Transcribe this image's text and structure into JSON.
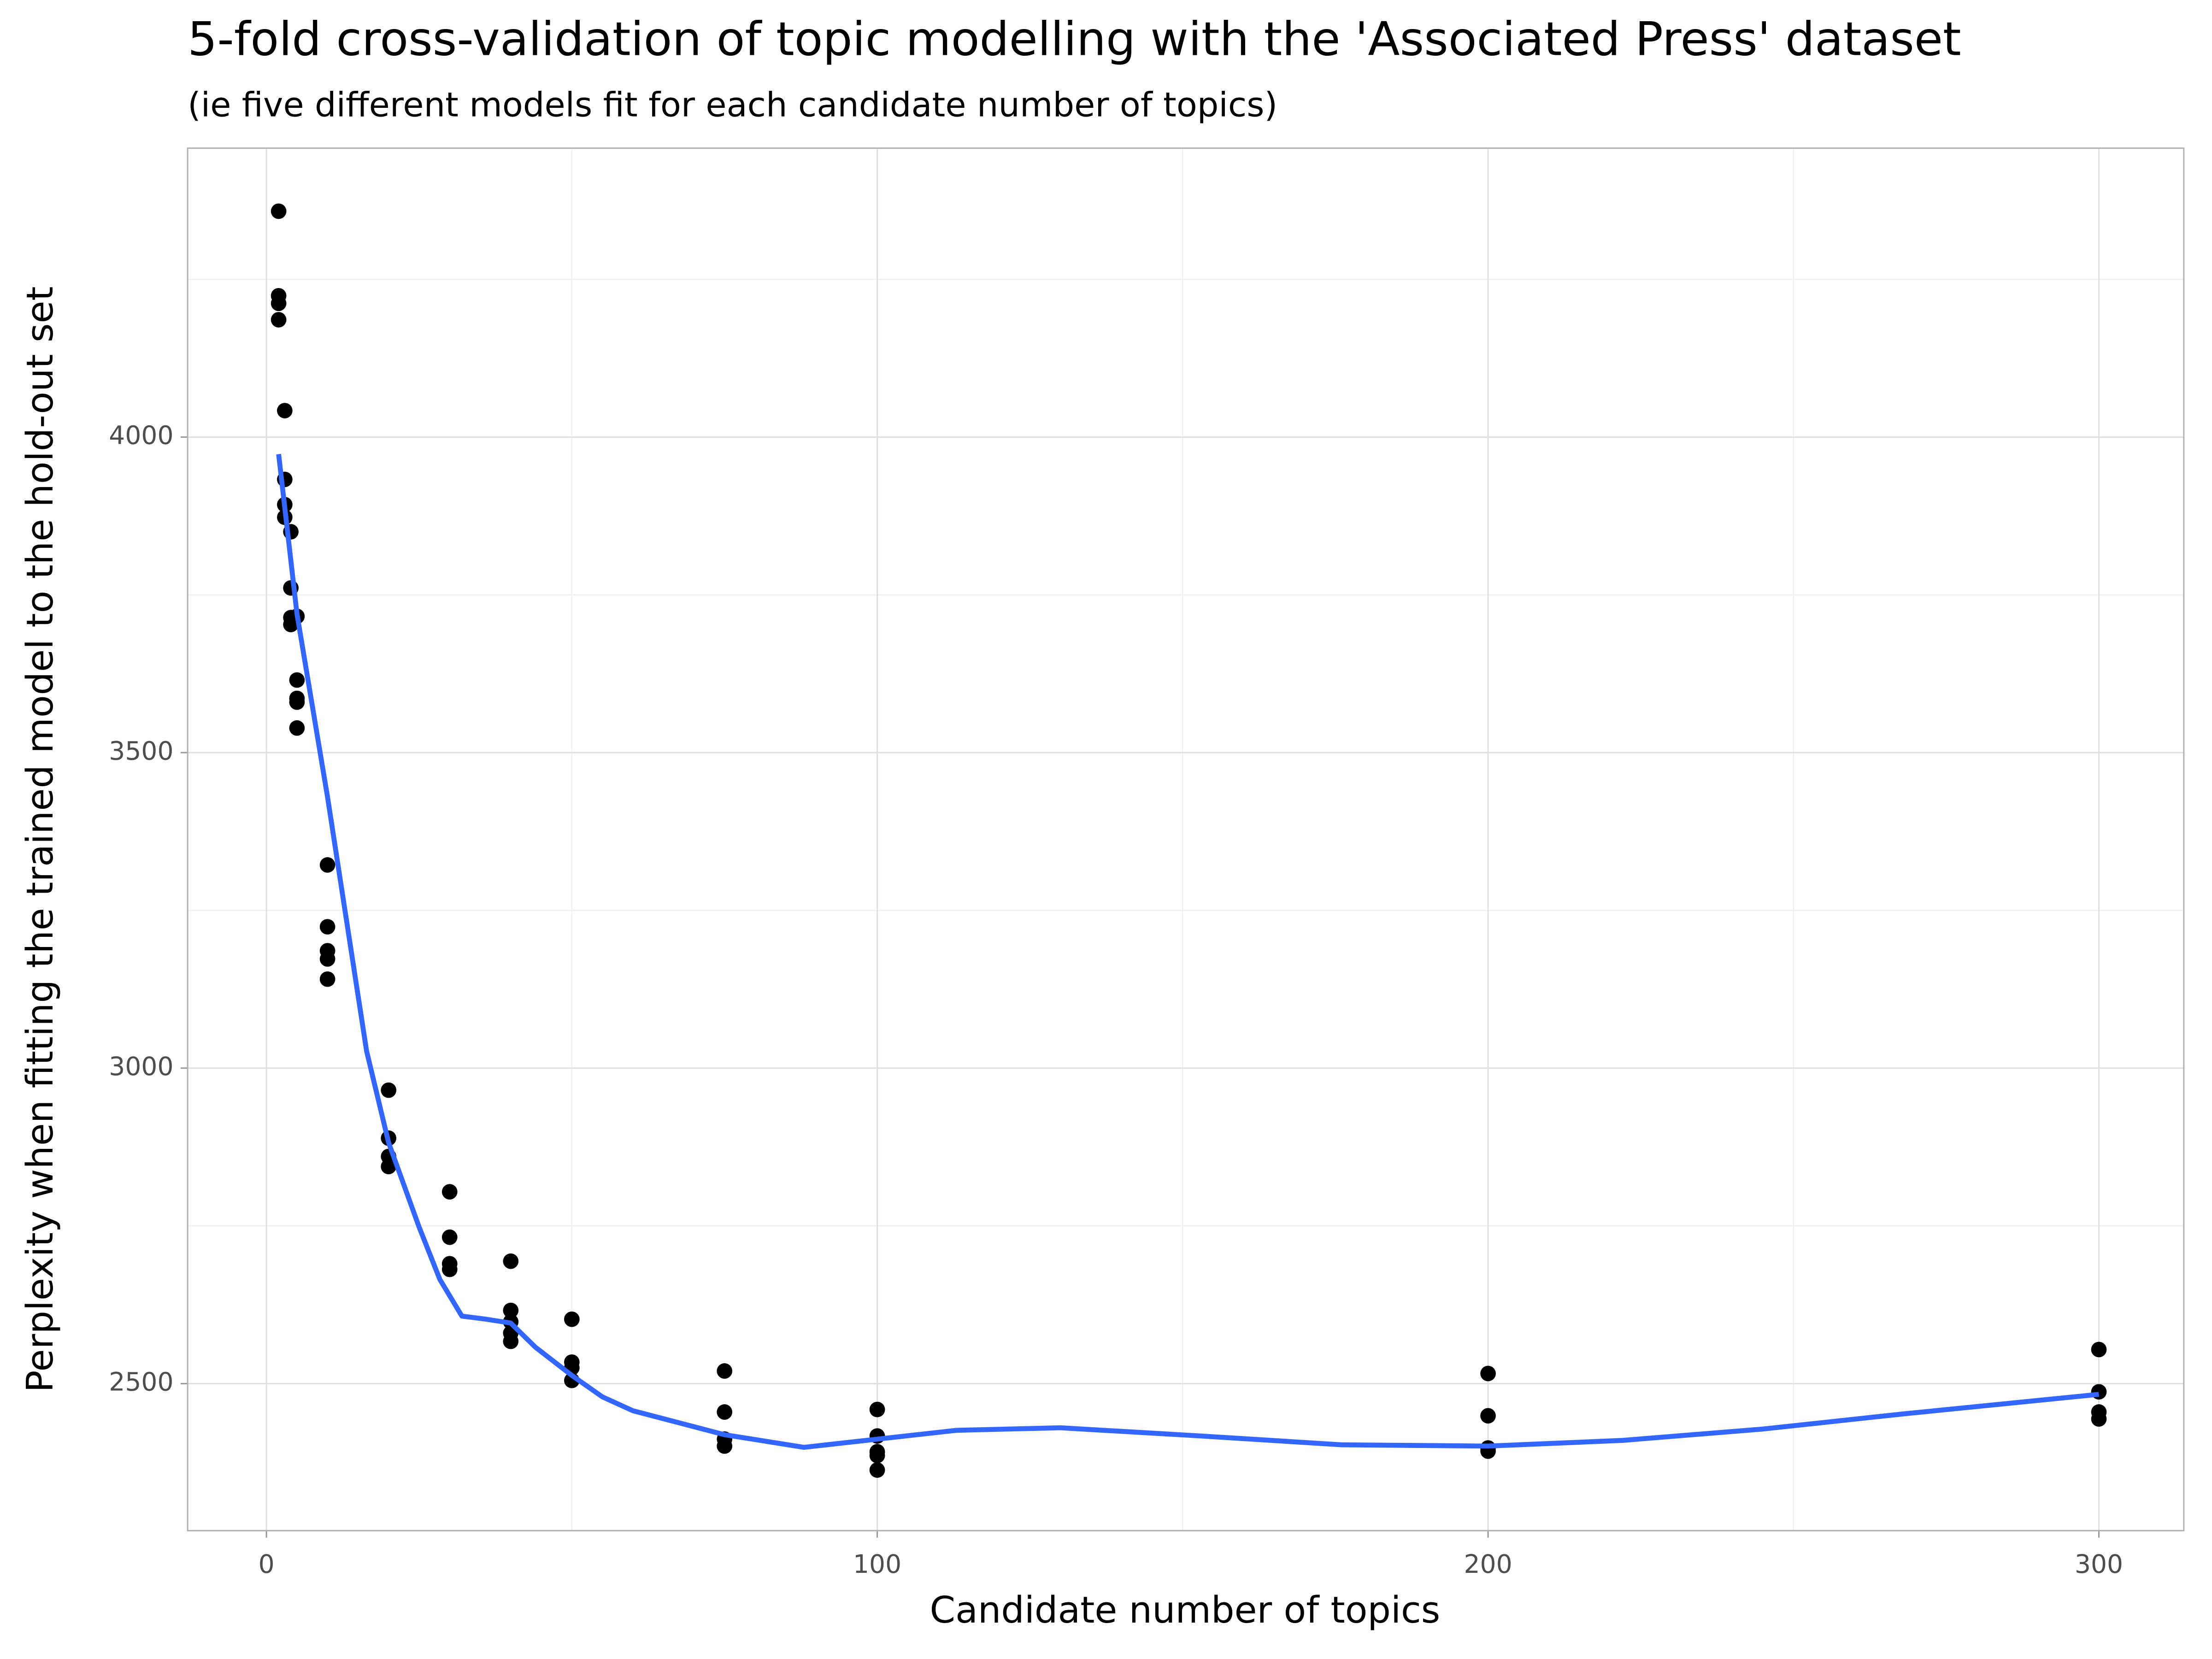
{
  "chart_data": {
    "type": "scatter",
    "title": "5-fold cross-validation of topic modelling with the 'Associated Press' dataset",
    "subtitle": "(ie five different models fit for each candidate number of topics)",
    "x_label": "Candidate number of topics",
    "y_label": "Perplexity when fitting the trained model to the hold-out set",
    "xlim": [
      -12.9,
      313.9
    ],
    "ylim": [
      2267,
      4458
    ],
    "xticks": [
      0,
      100,
      200,
      300
    ],
    "yticks": [
      2500,
      3000,
      3500,
      4000
    ],
    "xminor": [
      50,
      150,
      250
    ],
    "yminor": [
      2750,
      3250,
      3750,
      4250
    ],
    "grid": true,
    "series": [
      {
        "mode": "points",
        "color": "#000000",
        "x": [
          2,
          2,
          2,
          2,
          3,
          3,
          3,
          3,
          4,
          4,
          4,
          4,
          5,
          5,
          5,
          5,
          5,
          10,
          10,
          10,
          10,
          10,
          20,
          20,
          20,
          20,
          30,
          30,
          30,
          30,
          40,
          40,
          40,
          40,
          40,
          50,
          50,
          50,
          50,
          75,
          75,
          75,
          75,
          100,
          100,
          100,
          100,
          100,
          200,
          200,
          200,
          200,
          300,
          300,
          300,
          300
        ],
        "values": [
          4358,
          4224,
          4212,
          4186,
          4042,
          3933,
          3893,
          3873,
          3850,
          3761,
          3714,
          3703,
          3716,
          3615,
          3586,
          3580,
          3539,
          3322,
          3224,
          3186,
          3173,
          3141,
          2965,
          2889,
          2860,
          2844,
          2804,
          2732,
          2690,
          2681,
          2694,
          2616,
          2598,
          2580,
          2567,
          2602,
          2534,
          2525,
          2505,
          2520,
          2455,
          2412,
          2401,
          2459,
          2417,
          2392,
          2386,
          2363,
          2516,
          2449,
          2398,
          2393,
          2554,
          2487,
          2455,
          2444
        ]
      },
      {
        "mode": "line",
        "color": "#3366ff",
        "x": [
          2,
          5,
          10,
          16.4,
          20,
          25,
          28.4,
          32,
          36,
          40,
          44,
          50,
          55,
          60,
          75,
          88,
          100,
          113,
          130,
          153,
          176,
          200,
          222,
          245,
          268,
          300
        ],
        "values": [
          3973,
          3720,
          3430,
          3027,
          2882,
          2748,
          2665,
          2607,
          2602,
          2596,
          2558,
          2513,
          2479,
          2457,
          2419,
          2399,
          2412,
          2426,
          2430,
          2417,
          2403,
          2401,
          2410,
          2428,
          2452,
          2483
        ]
      }
    ]
  }
}
